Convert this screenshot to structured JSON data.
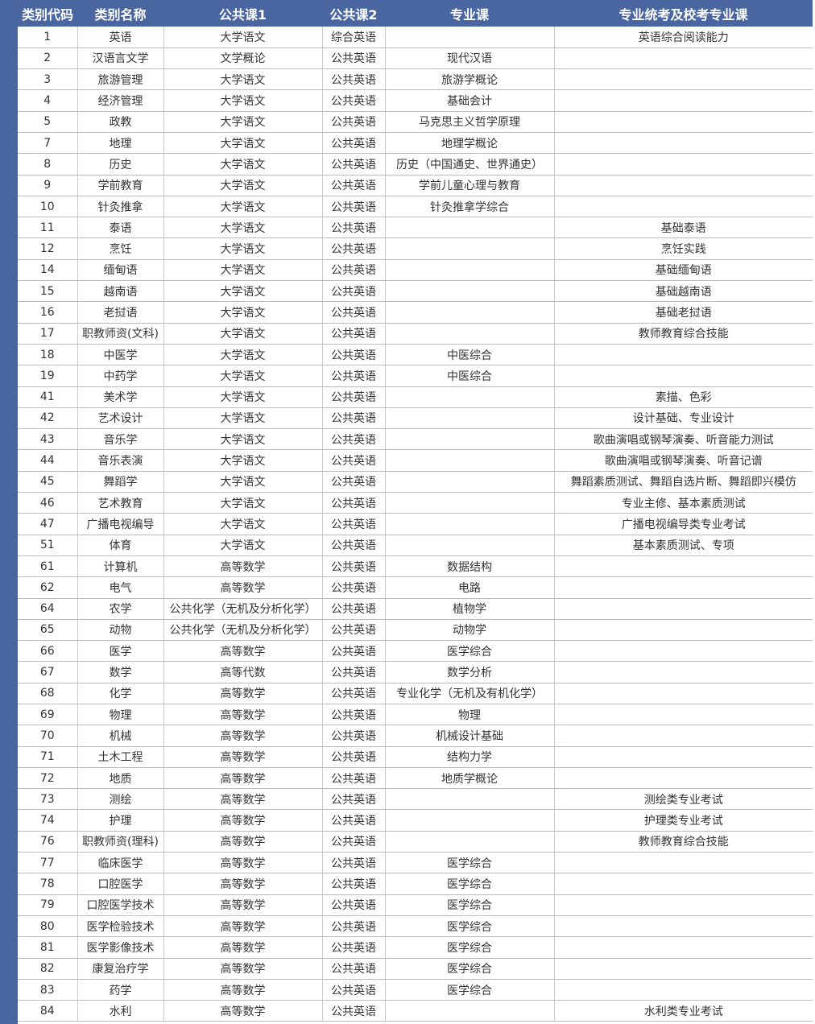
{
  "table": {
    "headers": [
      "类别代码",
      "类别名称",
      "公共课1",
      "公共课2",
      "专业课",
      "专业统考及校考专业课"
    ],
    "rows": [
      [
        "1",
        "英语",
        "大学语文",
        "综合英语",
        "",
        "英语综合阅读能力"
      ],
      [
        "2",
        "汉语言文学",
        "文学概论",
        "公共英语",
        "现代汉语",
        ""
      ],
      [
        "3",
        "旅游管理",
        "大学语文",
        "公共英语",
        "旅游学概论",
        ""
      ],
      [
        "4",
        "经济管理",
        "大学语文",
        "公共英语",
        "基础会计",
        ""
      ],
      [
        "5",
        "政教",
        "大学语文",
        "公共英语",
        "马克思主义哲学原理",
        ""
      ],
      [
        "7",
        "地理",
        "大学语文",
        "公共英语",
        "地理学概论",
        ""
      ],
      [
        "8",
        "历史",
        "大学语文",
        "公共英语",
        "历史（中国通史、世界通史）",
        ""
      ],
      [
        "9",
        "学前教育",
        "大学语文",
        "公共英语",
        "学前儿童心理与教育",
        ""
      ],
      [
        "10",
        "针灸推拿",
        "大学语文",
        "公共英语",
        "针灸推拿学综合",
        ""
      ],
      [
        "11",
        "泰语",
        "大学语文",
        "公共英语",
        "",
        "基础泰语"
      ],
      [
        "12",
        "烹饪",
        "大学语文",
        "公共英语",
        "",
        "烹饪实践"
      ],
      [
        "14",
        "缅甸语",
        "大学语文",
        "公共英语",
        "",
        "基础缅甸语"
      ],
      [
        "15",
        "越南语",
        "大学语文",
        "公共英语",
        "",
        "基础越南语"
      ],
      [
        "16",
        "老挝语",
        "大学语文",
        "公共英语",
        "",
        "基础老挝语"
      ],
      [
        "17",
        "职教师资(文科)",
        "大学语文",
        "公共英语",
        "",
        "教师教育综合技能"
      ],
      [
        "18",
        "中医学",
        "大学语文",
        "公共英语",
        "中医综合",
        ""
      ],
      [
        "19",
        "中药学",
        "大学语文",
        "公共英语",
        "中医综合",
        ""
      ],
      [
        "41",
        "美术学",
        "大学语文",
        "公共英语",
        "",
        "素描、色彩"
      ],
      [
        "42",
        "艺术设计",
        "大学语文",
        "公共英语",
        "",
        "设计基础、专业设计"
      ],
      [
        "43",
        "音乐学",
        "大学语文",
        "公共英语",
        "",
        "歌曲演唱或钢琴演奏、听音能力测试"
      ],
      [
        "44",
        "音乐表演",
        "大学语文",
        "公共英语",
        "",
        "歌曲演唱或钢琴演奏、听音记谱"
      ],
      [
        "45",
        "舞蹈学",
        "大学语文",
        "公共英语",
        "",
        "舞蹈素质测试、舞蹈自选片断、舞蹈即兴模仿"
      ],
      [
        "46",
        "艺术教育",
        "大学语文",
        "公共英语",
        "",
        "专业主修、基本素质测试"
      ],
      [
        "47",
        "广播电视编导",
        "大学语文",
        "公共英语",
        "",
        "广播电视编导类专业考试"
      ],
      [
        "51",
        "体育",
        "大学语文",
        "公共英语",
        "",
        "基本素质测试、专项"
      ],
      [
        "61",
        "计算机",
        "高等数学",
        "公共英语",
        "数据结构",
        ""
      ],
      [
        "62",
        "电气",
        "高等数学",
        "公共英语",
        "电路",
        ""
      ],
      [
        "64",
        "农学",
        "公共化学（无机及分析化学）",
        "公共英语",
        "植物学",
        ""
      ],
      [
        "65",
        "动物",
        "公共化学（无机及分析化学）",
        "公共英语",
        "动物学",
        ""
      ],
      [
        "66",
        "医学",
        "高等数学",
        "公共英语",
        "医学综合",
        ""
      ],
      [
        "67",
        "数学",
        "高等代数",
        "公共英语",
        "数学分析",
        ""
      ],
      [
        "68",
        "化学",
        "高等数学",
        "公共英语",
        "专业化学（无机及有机化学）",
        ""
      ],
      [
        "69",
        "物理",
        "高等数学",
        "公共英语",
        "物理",
        ""
      ],
      [
        "70",
        "机械",
        "高等数学",
        "公共英语",
        "机械设计基础",
        ""
      ],
      [
        "71",
        "土木工程",
        "高等数学",
        "公共英语",
        "结构力学",
        ""
      ],
      [
        "72",
        "地质",
        "高等数学",
        "公共英语",
        "地质学概论",
        ""
      ],
      [
        "73",
        "测绘",
        "高等数学",
        "公共英语",
        "",
        "测绘类专业考试"
      ],
      [
        "74",
        "护理",
        "高等数学",
        "公共英语",
        "",
        "护理类专业考试"
      ],
      [
        "76",
        "职教师资(理科)",
        "高等数学",
        "公共英语",
        "",
        "教师教育综合技能"
      ],
      [
        "77",
        "临床医学",
        "高等数学",
        "公共英语",
        "医学综合",
        ""
      ],
      [
        "78",
        "口腔医学",
        "高等数学",
        "公共英语",
        "医学综合",
        ""
      ],
      [
        "79",
        "口腔医学技术",
        "高等数学",
        "公共英语",
        "医学综合",
        ""
      ],
      [
        "80",
        "医学检验技术",
        "高等数学",
        "公共英语",
        "医学综合",
        ""
      ],
      [
        "81",
        "医学影像技术",
        "高等数学",
        "公共英语",
        "医学综合",
        ""
      ],
      [
        "82",
        "康复治疗学",
        "高等数学",
        "公共英语",
        "医学综合",
        ""
      ],
      [
        "83",
        "药学",
        "高等数学",
        "公共英语",
        "医学综合",
        ""
      ],
      [
        "84",
        "水利",
        "高等数学",
        "公共英语",
        "",
        "水利类专业考试"
      ]
    ]
  },
  "colors": {
    "header_bg": "#4a66a0",
    "header_text": "#ffffff"
  }
}
